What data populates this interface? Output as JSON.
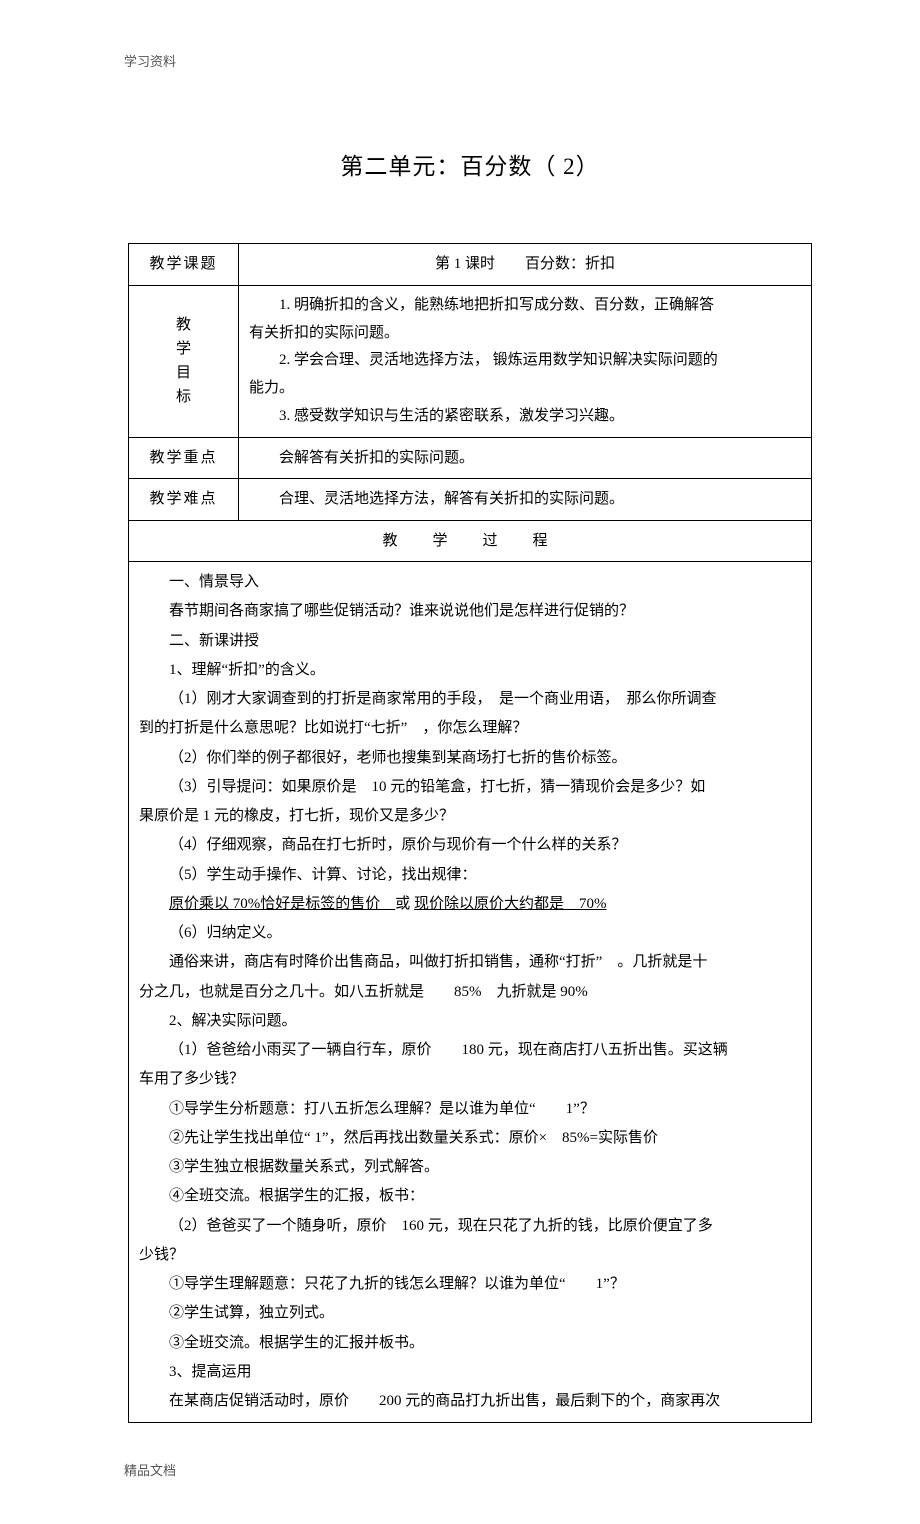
{
  "header_note": "学习资料",
  "footer_note": "精品文档",
  "title": "第二单元：百分数（ 2）",
  "rows": {
    "topic_label": "教学课题",
    "topic_value": "第 1 课时　　百分数：折扣",
    "goal_label_chars": [
      "教",
      "学",
      "目",
      "标"
    ],
    "goal_lines": [
      "　　1. 明确折扣的含义，能熟练地把折扣写成分数、百分数，正确解答",
      "有关折扣的实际问题。",
      "　　2. 学会合理、灵活地选择方法， 锻炼运用数学知识解决实际问题的",
      "能力。",
      "　　3. 感受数学知识与生活的紧密联系，激发学习兴趣。"
    ],
    "keypoint_label": "教学重点",
    "keypoint_value": "　　会解答有关折扣的实际问题。",
    "difficulty_label": "教学难点",
    "difficulty_value": "　　合理、灵活地选择方法，解答有关折扣的实际问题。",
    "process_header": "教　学　过　程"
  },
  "body": [
    {
      "cls": "p-l1",
      "t": "一、情景导入"
    },
    {
      "cls": "p-l1",
      "t": "春节期间各商家搞了哪些促销活动？谁来说说他们是怎样进行促销的？"
    },
    {
      "cls": "p-l1",
      "t": "二、新课讲授"
    },
    {
      "cls": "p-l1",
      "t": "1、理解“折扣”的含义。"
    },
    {
      "cls": "p-l1",
      "t": "（1）刚才大家调查到的打折是商家常用的手段，　是一个商业用语，　那么你所调查"
    },
    {
      "cls": "",
      "t": "到的打折是什么意思呢？比如说打“七折”　，你怎么理解？"
    },
    {
      "cls": "p-l1",
      "t": "（2）你们举的例子都很好，老师也搜集到某商场打七折的售价标签。"
    },
    {
      "cls": "p-l1",
      "t": "（3）引导提问：如果原价是　10 元的铅笔盒，打七折，猜一猜现价会是多少？如"
    },
    {
      "cls": "",
      "t": "果原价是 1 元的橡皮，打七折，现价又是多少？"
    },
    {
      "cls": "p-l1",
      "t": "（4）仔细观察，商品在打七折时，原价与现价有一个什么样的关系？"
    },
    {
      "cls": "p-l1",
      "t": "（5）学生动手操作、计算、讨论，找出规律："
    },
    {
      "cls": "p-l1",
      "t": "",
      "html": "<span class=\"underline\">原价乘以 70%恰好是标签的售价　</span>或 <span class=\"underline\">现价除以原价大约都是　70%</span>"
    },
    {
      "cls": "p-l1",
      "t": "（6）归纳定义。"
    },
    {
      "cls": "p-l1",
      "t": "通俗来讲，商店有时降价出售商品，叫做打折扣销售，通称“打折”　。几折就是十"
    },
    {
      "cls": "",
      "t": "分之几，也就是百分之几十。如八五折就是　　85%　九折就是 90%"
    },
    {
      "cls": "p-l1",
      "t": "2、解决实际问题。"
    },
    {
      "cls": "p-l1",
      "t": "（1）爸爸给小雨买了一辆自行车，原价　　180 元，现在商店打八五折出售。买这辆"
    },
    {
      "cls": "",
      "t": "车用了多少钱？"
    },
    {
      "cls": "p-l1",
      "t": "①导学生分析题意：打八五折怎么理解？是以谁为单位“　　1”？"
    },
    {
      "cls": "p-l1",
      "t": "②先让学生找出单位“ 1”，然后再找出数量关系式：原价×　85%=实际售价"
    },
    {
      "cls": "p-l1",
      "t": "③学生独立根据数量关系式，列式解答。"
    },
    {
      "cls": "p-l1",
      "t": "④全班交流。根据学生的汇报，板书："
    },
    {
      "cls": "p-l1",
      "t": "（2）爸爸买了一个随身听，原价　160 元，现在只花了九折的钱，比原价便宜了多"
    },
    {
      "cls": "",
      "t": "少钱？"
    },
    {
      "cls": "p-l1",
      "t": "①导学生理解题意：只花了九折的钱怎么理解？以谁为单位“　　1”？"
    },
    {
      "cls": "p-l1",
      "t": "②学生试算，独立列式。"
    },
    {
      "cls": "p-l1",
      "t": "③全班交流。根据学生的汇报并板书。"
    },
    {
      "cls": "p-l1",
      "t": "3、提高运用"
    },
    {
      "cls": "p-l1",
      "t": "在某商店促销活动时，原价　　200 元的商品打九折出售，最后剩下的个，商家再次"
    }
  ]
}
